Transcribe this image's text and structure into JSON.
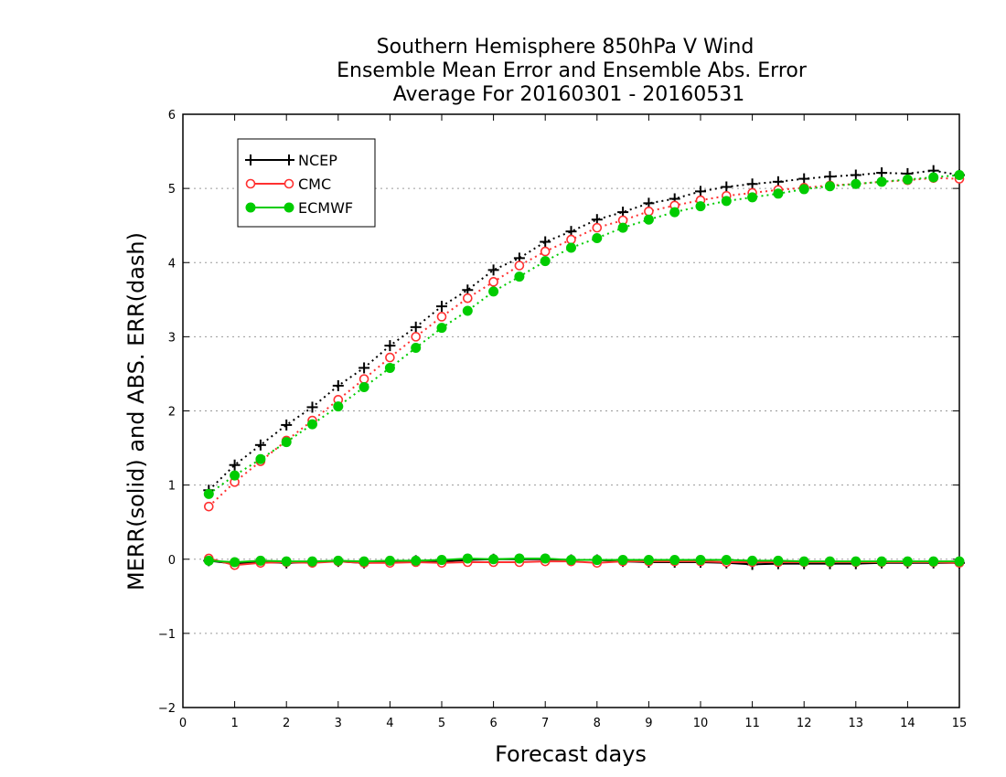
{
  "chart_data": {
    "type": "line",
    "title_lines": [
      "Southern Hemisphere 850hPa V Wind",
      "Ensemble Mean Error and Ensemble Abs. Error",
      "Average For 20160301 - 20160531"
    ],
    "xlabel": "Forecast days",
    "ylabel": "MERR(solid) and ABS. ERR(dash)",
    "xlim": [
      0,
      15
    ],
    "ylim": [
      -2,
      6
    ],
    "xticks": [
      "0",
      "1",
      "2",
      "3",
      "4",
      "5",
      "6",
      "7",
      "8",
      "9",
      "10",
      "11",
      "12",
      "13",
      "14",
      "15"
    ],
    "yticks": [
      "-2",
      "-1",
      "0",
      "1",
      "2",
      "3",
      "4",
      "5",
      "6"
    ],
    "grid": "horizontal dotted",
    "legend_position": "top-left",
    "x": [
      0.5,
      1,
      1.5,
      2,
      2.5,
      3,
      3.5,
      4,
      4.5,
      5,
      5.5,
      6,
      6.5,
      7,
      7.5,
      8,
      8.5,
      9,
      9.5,
      10,
      10.5,
      11,
      11.5,
      12,
      12.5,
      13,
      13.5,
      14,
      14.5,
      15
    ],
    "series": [
      {
        "name": "NCEP",
        "color": "#000000",
        "marker": "plus",
        "abs_err": [
          0.93,
          1.27,
          1.54,
          1.81,
          2.05,
          2.34,
          2.58,
          2.88,
          3.13,
          3.41,
          3.63,
          3.9,
          4.06,
          4.28,
          4.42,
          4.58,
          4.68,
          4.8,
          4.86,
          4.96,
          5.02,
          5.06,
          5.09,
          5.13,
          5.16,
          5.18,
          5.21,
          5.2,
          5.24,
          5.18
        ],
        "merr": [
          -0.02,
          -0.06,
          -0.04,
          -0.05,
          -0.04,
          -0.03,
          -0.05,
          -0.04,
          -0.02,
          -0.03,
          -0.01,
          0.0,
          0.0,
          0.0,
          -0.01,
          -0.01,
          -0.03,
          -0.04,
          -0.04,
          -0.04,
          -0.05,
          -0.07,
          -0.06,
          -0.06,
          -0.06,
          -0.06,
          -0.05,
          -0.05,
          -0.05,
          -0.05
        ]
      },
      {
        "name": "CMC",
        "color": "#ff3030",
        "marker": "open-circle",
        "abs_err": [
          0.71,
          1.04,
          1.32,
          1.6,
          1.87,
          2.15,
          2.43,
          2.72,
          3.0,
          3.27,
          3.52,
          3.74,
          3.96,
          4.15,
          4.31,
          4.47,
          4.57,
          4.69,
          4.77,
          4.84,
          4.9,
          4.94,
          4.98,
          5.01,
          5.04,
          5.06,
          5.09,
          5.11,
          5.14,
          5.13
        ],
        "merr": [
          0.01,
          -0.08,
          -0.05,
          -0.04,
          -0.05,
          -0.03,
          -0.05,
          -0.05,
          -0.04,
          -0.05,
          -0.04,
          -0.04,
          -0.04,
          -0.03,
          -0.03,
          -0.05,
          -0.03,
          -0.03,
          -0.03,
          -0.03,
          -0.04,
          -0.04,
          -0.04,
          -0.04,
          -0.04,
          -0.04,
          -0.04,
          -0.04,
          -0.04,
          -0.05
        ]
      },
      {
        "name": "ECMWF",
        "color": "#00cc00",
        "marker": "filled-circle",
        "abs_err": [
          0.88,
          1.13,
          1.35,
          1.58,
          1.82,
          2.06,
          2.32,
          2.58,
          2.85,
          3.12,
          3.35,
          3.61,
          3.81,
          4.02,
          4.2,
          4.33,
          4.47,
          4.58,
          4.68,
          4.76,
          4.83,
          4.88,
          4.93,
          4.99,
          5.03,
          5.06,
          5.09,
          5.12,
          5.15,
          5.18
        ],
        "merr": [
          -0.02,
          -0.04,
          -0.02,
          -0.03,
          -0.03,
          -0.02,
          -0.03,
          -0.02,
          -0.02,
          -0.01,
          0.01,
          0.0,
          0.01,
          0.01,
          -0.01,
          -0.01,
          -0.01,
          -0.01,
          -0.01,
          -0.01,
          -0.01,
          -0.02,
          -0.02,
          -0.03,
          -0.03,
          -0.03,
          -0.03,
          -0.03,
          -0.03,
          -0.03
        ]
      }
    ]
  }
}
